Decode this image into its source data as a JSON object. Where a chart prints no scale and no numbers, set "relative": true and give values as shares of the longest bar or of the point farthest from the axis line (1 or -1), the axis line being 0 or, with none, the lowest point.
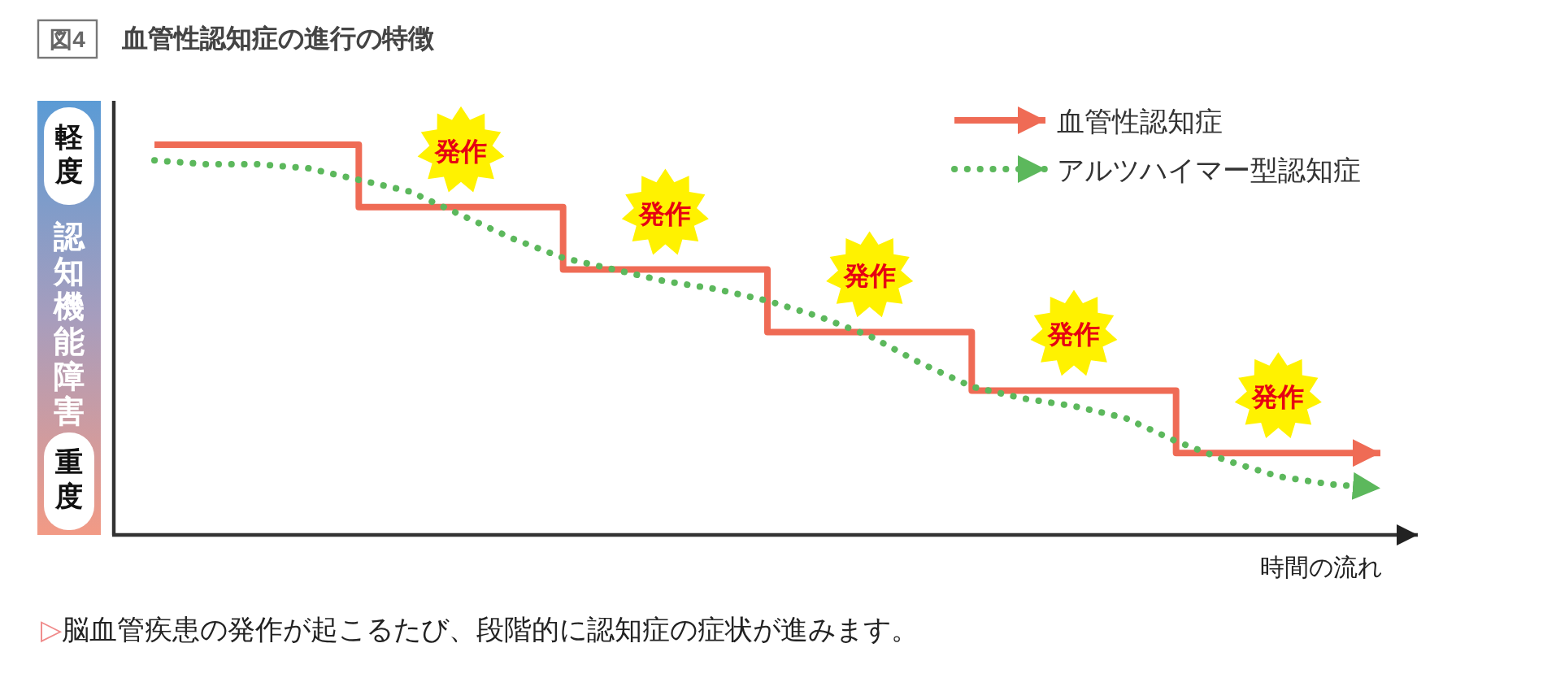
{
  "chart_data": {
    "type": "step",
    "title": "血管性認知症の進行の特徴",
    "xlabel": "時間の流れ",
    "ylabel": "認知機能障害",
    "relative": true,
    "legend": "top right",
    "categories": [
      null,
      null,
      null,
      null,
      null,
      null,
      null,
      null,
      null,
      null,
      null,
      null,
      null,
      null,
      null,
      null,
      null,
      null,
      null,
      null,
      null,
      null,
      null,
      null,
      null
    ],
    "series": [
      {
        "name": "血管性認知症",
        "color": "#ef6b55",
        "line_style": "solid",
        "values": [
          1,
          1,
          1,
          1,
          0.84,
          0.84,
          0.84,
          0.84,
          0.68,
          0.68,
          0.68,
          0.68,
          0.52,
          0.52,
          0.52,
          0.52,
          0.37,
          0.37,
          0.37,
          0.37,
          0.21,
          0.21,
          0.21,
          0.21,
          0.21
        ]
      },
      {
        "name": "アルツハイマー型認知症",
        "type": "line",
        "color": "#5cb85c",
        "line_style": "dotted",
        "values": [
          0.96,
          0.95,
          0.95,
          0.94,
          0.91,
          0.88,
          0.82,
          0.76,
          0.71,
          0.68,
          0.65,
          0.63,
          0.6,
          0.56,
          0.51,
          0.44,
          0.38,
          0.35,
          0.33,
          0.3,
          0.24,
          0.19,
          0.15,
          0.13,
          0.12
        ]
      }
    ],
    "annotations": [
      "図4",
      "軽度",
      "重度",
      "発作",
      "発作",
      "発作",
      "発作",
      "発作",
      "▷脳血管疾患の発作が起こるたび、段階的に認知症の症状が進みます。"
    ]
  }
}
